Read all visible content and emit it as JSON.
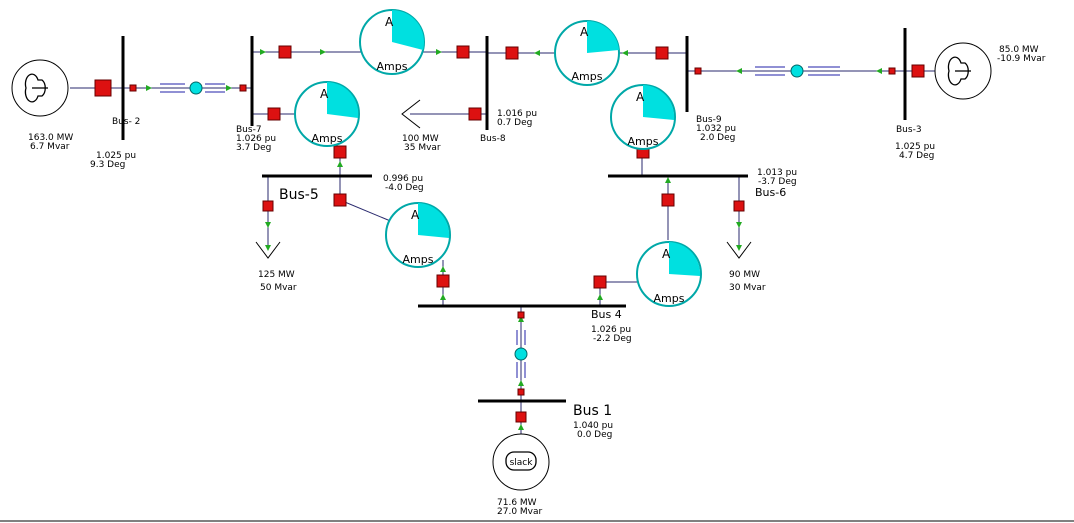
{
  "colors": {
    "line": "#2a2a6e",
    "breaker": "#dd1111",
    "meter": "#00e0e0",
    "arrow": "#22aa22"
  },
  "meters": {
    "letter": "A",
    "unit": "Amps"
  },
  "buses": {
    "b1": {
      "name": "Bus 1",
      "pu": "1.040 pu",
      "deg": "0.0 Deg"
    },
    "b2": {
      "name": "Bus- 2",
      "pu": "1.025 pu",
      "deg": "9.3 Deg"
    },
    "b3": {
      "name": "Bus-3",
      "pu": "1.025 pu",
      "deg": "4.7 Deg"
    },
    "b4": {
      "name": "Bus 4",
      "pu": "1.026 pu",
      "deg": "-2.2 Deg"
    },
    "b5": {
      "name": "Bus-5",
      "pu": "0.996 pu",
      "deg": "-4.0 Deg"
    },
    "b6": {
      "name": "Bus-6",
      "pu": "1.013 pu",
      "deg": "-3.7 Deg"
    },
    "b7": {
      "name": "Bus-7",
      "pu": "1.026 pu",
      "deg": "3.7 Deg"
    },
    "b8": {
      "name": "Bus-8",
      "pu": "1.016 pu",
      "deg": "0.7 Deg"
    },
    "b9": {
      "name": "Bus-9",
      "pu": "1.032 pu",
      "deg": "2.0 Deg"
    }
  },
  "generators": {
    "g1": {
      "label": "slack",
      "mw": "71.6 MW",
      "mvar": "27.0 Mvar"
    },
    "g2": {
      "mw": "163.0 MW",
      "mvar": "6.7 Mvar"
    },
    "g3": {
      "mw": "85.0 MW",
      "mvar": "-10.9 Mvar"
    }
  },
  "loads": {
    "l5": {
      "mw": "125 MW",
      "mvar": "50 Mvar"
    },
    "l6": {
      "mw": "90 MW",
      "mvar": "30 Mvar"
    },
    "l8": {
      "mw": "100 MW",
      "mvar": "35 Mvar"
    }
  }
}
